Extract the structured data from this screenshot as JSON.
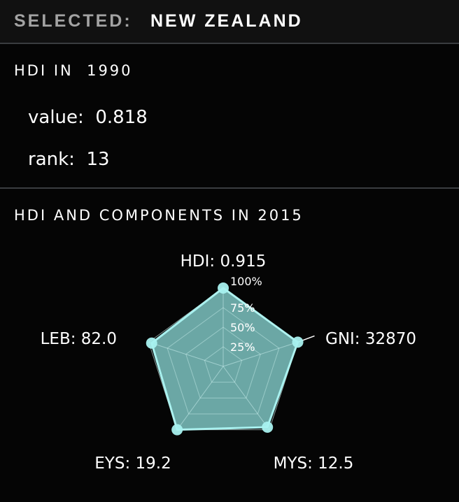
{
  "header": {
    "label": "SELECTED:",
    "country": "NEW ZEALAND"
  },
  "hdi_1990": {
    "title": "HDI IN  1990",
    "value_label": "value:",
    "value": "0.818",
    "rank_label": "rank:",
    "rank": "13"
  },
  "components_2015": {
    "title": "HDI AND COMPONENTS IN 2015"
  },
  "colors": {
    "fill": "#7ec4c2",
    "stroke": "#a8f1ef",
    "grid": "#bfdcdb"
  },
  "chart_data": {
    "type": "radar",
    "title": "",
    "max": 100,
    "levels": [
      {
        "value": 100,
        "label": "100%"
      },
      {
        "value": 75,
        "label": "75%"
      },
      {
        "value": 50,
        "label": "50%"
      },
      {
        "value": 25,
        "label": "25%"
      }
    ],
    "axes": [
      {
        "label": "HDI: 0.915",
        "value": 100
      },
      {
        "label": "GNI: 32870",
        "value": 100
      },
      {
        "label": "MYS: 12.5",
        "value": 96
      },
      {
        "label": "EYS: 19.2",
        "value": 100
      },
      {
        "label": "LEB: 82.0",
        "value": 96
      }
    ]
  }
}
